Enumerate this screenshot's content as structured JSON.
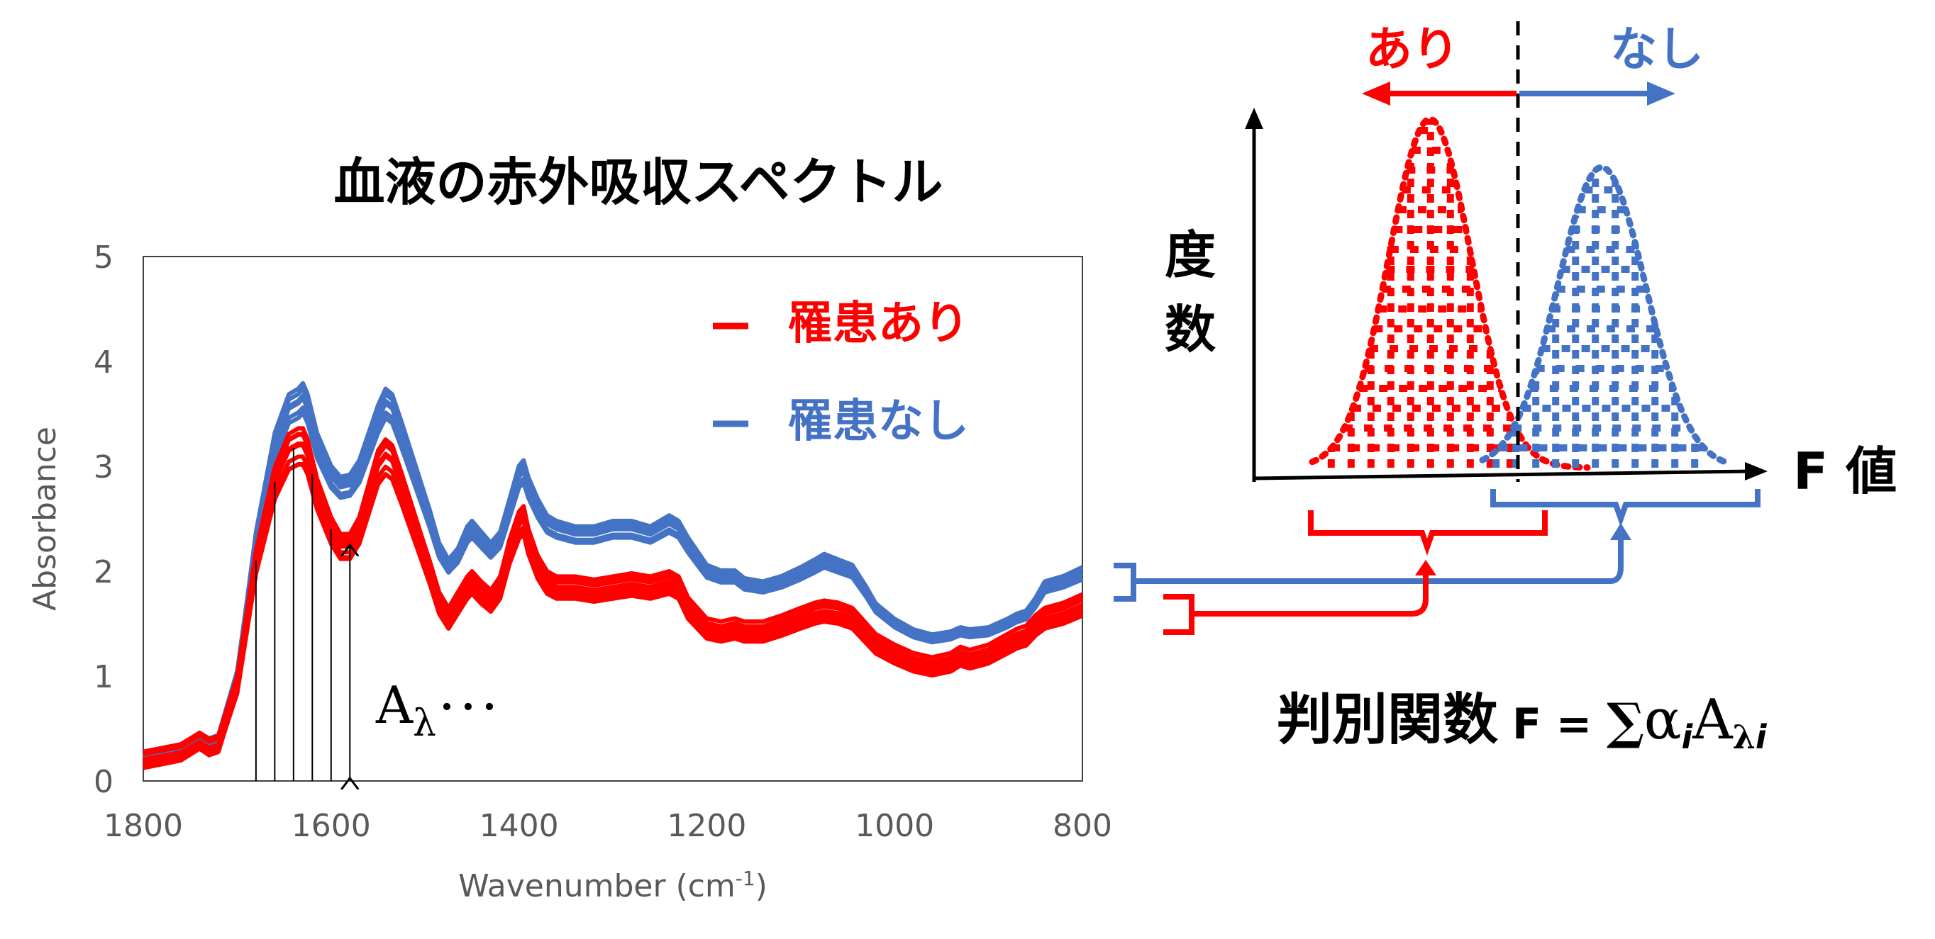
{
  "title": "血液の赤外吸収スペクトル",
  "colors": {
    "red": "#ff0000",
    "blue": "#4472c4",
    "axis": "#404040",
    "tick": "#595959"
  },
  "legend": [
    {
      "label": "罹患あり",
      "color": "#ff0000"
    },
    {
      "label": "罹患なし",
      "color": "#4472c4"
    }
  ],
  "annotation": {
    "a": "A",
    "lambda": "λ",
    "dots": "･･･"
  },
  "hist": {
    "ylabel": [
      "度",
      "数"
    ],
    "xlabel": "F 値",
    "left_label": "あり",
    "right_label": "なし"
  },
  "formula": {
    "label": "判別関数",
    "prefix": "F = ",
    "sum": "∑",
    "alpha": "α",
    "i": "i",
    "A": "A",
    "lambda": "λ"
  },
  "chart_data": {
    "type": "line",
    "title": "血液の赤外吸収スペクトル",
    "xlabel": "Wavenumber (cm-1)",
    "ylabel": "Absorbance",
    "xlim": [
      1800,
      800
    ],
    "ylim": [
      0,
      5
    ],
    "x_ticks": [
      1800,
      1600,
      1400,
      1200,
      1000,
      800
    ],
    "y_ticks": [
      0,
      1,
      2,
      3,
      4,
      5
    ],
    "grid": false,
    "legend_position": "top-right",
    "x": [
      1800,
      1760,
      1740,
      1730,
      1720,
      1700,
      1680,
      1660,
      1645,
      1635,
      1630,
      1625,
      1615,
      1600,
      1590,
      1580,
      1570,
      1560,
      1550,
      1542,
      1535,
      1525,
      1510,
      1495,
      1485,
      1475,
      1465,
      1455,
      1450,
      1440,
      1430,
      1420,
      1410,
      1400,
      1395,
      1390,
      1380,
      1370,
      1360,
      1340,
      1320,
      1300,
      1280,
      1260,
      1240,
      1230,
      1220,
      1200,
      1185,
      1170,
      1160,
      1140,
      1120,
      1100,
      1085,
      1075,
      1060,
      1045,
      1030,
      1020,
      1000,
      980,
      960,
      940,
      930,
      920,
      900,
      880,
      870,
      860,
      850,
      840,
      820,
      800
    ],
    "series": [
      {
        "name": "罹患なし",
        "values": [
          0.2,
          0.28,
          0.4,
          0.35,
          0.38,
          1.0,
          2.3,
          3.2,
          3.55,
          3.6,
          3.65,
          3.55,
          3.2,
          2.9,
          2.8,
          2.82,
          2.95,
          3.2,
          3.45,
          3.6,
          3.55,
          3.3,
          2.9,
          2.5,
          2.2,
          2.05,
          2.15,
          2.35,
          2.4,
          2.3,
          2.2,
          2.3,
          2.6,
          2.9,
          2.95,
          2.8,
          2.6,
          2.45,
          2.4,
          2.35,
          2.35,
          2.4,
          2.4,
          2.35,
          2.45,
          2.4,
          2.25,
          2.0,
          1.95,
          1.95,
          1.88,
          1.85,
          1.9,
          1.98,
          2.05,
          2.1,
          2.05,
          2.0,
          1.8,
          1.65,
          1.5,
          1.4,
          1.35,
          1.38,
          1.42,
          1.4,
          1.42,
          1.5,
          1.55,
          1.58,
          1.7,
          1.85,
          1.9,
          1.98
        ]
      },
      {
        "name": "罹患あり",
        "values": [
          0.18,
          0.25,
          0.36,
          0.3,
          0.33,
          0.9,
          2.1,
          2.85,
          3.15,
          3.2,
          3.2,
          3.1,
          2.75,
          2.4,
          2.25,
          2.25,
          2.4,
          2.7,
          3.0,
          3.1,
          3.05,
          2.8,
          2.4,
          2.0,
          1.7,
          1.55,
          1.7,
          1.85,
          1.9,
          1.8,
          1.72,
          1.85,
          2.2,
          2.45,
          2.5,
          2.3,
          2.05,
          1.9,
          1.85,
          1.85,
          1.82,
          1.85,
          1.88,
          1.85,
          1.9,
          1.85,
          1.65,
          1.45,
          1.42,
          1.45,
          1.42,
          1.42,
          1.48,
          1.55,
          1.6,
          1.62,
          1.6,
          1.55,
          1.4,
          1.3,
          1.2,
          1.12,
          1.08,
          1.12,
          1.18,
          1.15,
          1.2,
          1.3,
          1.35,
          1.38,
          1.48,
          1.55,
          1.6,
          1.68
        ]
      }
    ],
    "markers_wavenumbers": [
      1680,
      1660,
      1640,
      1620,
      1600,
      1580
    ]
  }
}
